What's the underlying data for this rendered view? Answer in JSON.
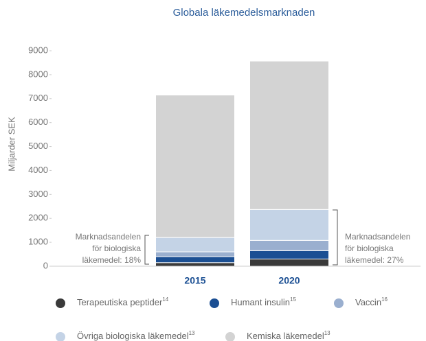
{
  "chart_data": {
    "type": "stacked_bar",
    "title": "Globala läkemedelsmarknaden",
    "y_label": "Miljarder SEK",
    "categories": [
      "2015",
      "2020"
    ],
    "series": [
      {
        "name": "Terapeutiska peptider",
        "footnote": "14",
        "color": "#3a3a3a",
        "values": [
          150,
          300
        ]
      },
      {
        "name": "Humant insulin",
        "footnote": "15",
        "color": "#1b4f93",
        "values": [
          250,
          350
        ]
      },
      {
        "name": "Vaccin",
        "footnote": "16",
        "color": "#9aafcf",
        "values": [
          200,
          430
        ]
      },
      {
        "name": "Övriga biologiska läkemedel",
        "footnote": "13",
        "color": "#c4d3e6",
        "values": [
          600,
          1290
        ]
      },
      {
        "name": "Kemiska läkemedel",
        "footnote": "13",
        "color": "#d3d3d3",
        "values": [
          5950,
          6200
        ]
      }
    ],
    "annotations": [
      [
        "Marknadsandelen",
        "för biologiska",
        "läkemedel: 18%"
      ],
      [
        "Marknadsandelen",
        "för biologiska",
        "läkemedel: 27%"
      ]
    ],
    "ylim": [
      0,
      9000
    ],
    "yticks": [
      0,
      1000,
      2000,
      3000,
      4000,
      5000,
      6000,
      7000,
      8000,
      9000
    ],
    "grid": false
  }
}
